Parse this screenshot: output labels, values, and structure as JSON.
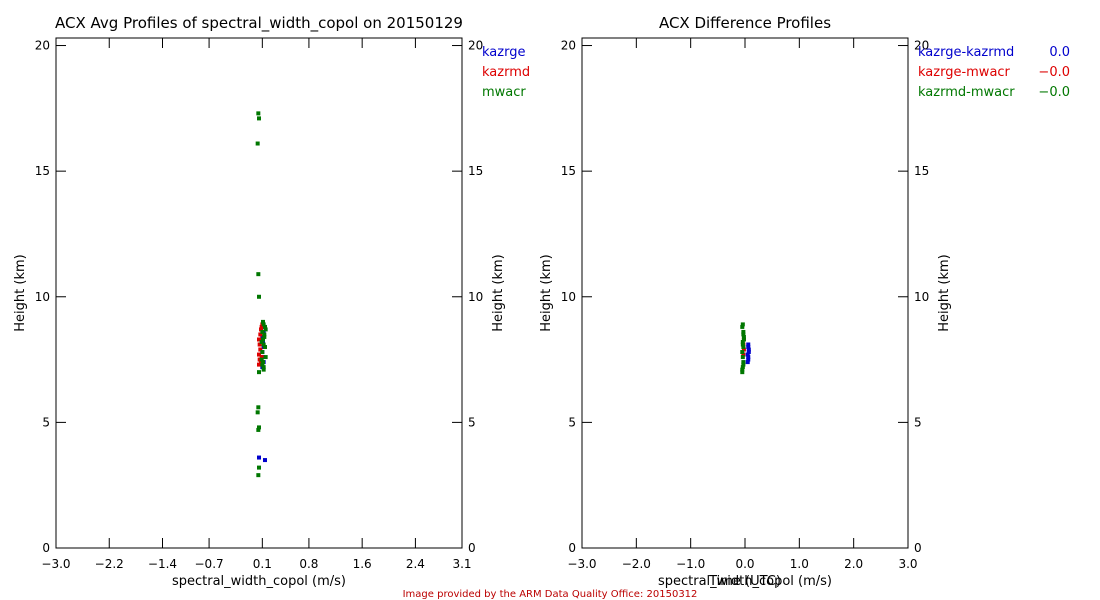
{
  "credit": "Image provided by the ARM Data Quality Office: 20150312",
  "colors": {
    "kazrge": "#0000cc",
    "kazrmd": "#dd0000",
    "mwacr": "#007700",
    "credit": "#bb0000",
    "axis": "#000000"
  },
  "chart_data": [
    {
      "type": "scatter",
      "title": "ACX Avg Profiles of spectral_width_copol on 20150129",
      "xlabel": "spectral_width_copol (m/s)",
      "ylabel": "Height (km)",
      "ylabel_right": "Height (km)",
      "xlim": [
        -3.0,
        3.1
      ],
      "ylim": [
        0,
        20.3
      ],
      "xticks": [
        -3.0,
        -2.2,
        -1.4,
        -0.7,
        0.1,
        0.8,
        1.6,
        2.4,
        3.1
      ],
      "xtick_labels": [
        "−3.0",
        "−2.2",
        "−1.4",
        "−0.7",
        "0.1",
        "0.8",
        "1.6",
        "2.4",
        "3.1"
      ],
      "yticks": [
        0,
        5,
        10,
        15,
        20
      ],
      "ytick_labels": [
        "0",
        "5",
        "10",
        "15",
        "20"
      ],
      "legend_position": "top-right-outside",
      "legend": [
        {
          "label": "kazrge",
          "color": "#0000cc"
        },
        {
          "label": "kazrmd",
          "color": "#dd0000"
        },
        {
          "label": "mwacr",
          "color": "#007700"
        }
      ],
      "series": [
        {
          "name": "kazrge",
          "color": "#0000cc",
          "x": [
            0.1,
            0.12,
            0.11,
            0.1,
            0.12,
            0.11,
            0.1,
            0.12,
            0.14,
            0.05
          ],
          "y": [
            7.2,
            7.4,
            7.6,
            7.8,
            8.0,
            8.2,
            8.4,
            8.6,
            3.5,
            3.6
          ]
        },
        {
          "name": "kazrmd",
          "color": "#dd0000",
          "x": [
            0.05,
            0.06,
            0.05,
            0.07,
            0.06,
            0.05,
            0.07,
            0.08,
            0.09,
            0.1,
            0.09,
            0.08
          ],
          "y": [
            7.3,
            7.5,
            7.7,
            7.9,
            8.1,
            8.3,
            8.5,
            8.7,
            8.8,
            8.9,
            7.6,
            7.4
          ]
        },
        {
          "name": "mwacr",
          "color": "#007700",
          "x": [
            0.04,
            0.05,
            0.04,
            0.05,
            0.03,
            0.04,
            0.05,
            0.04,
            0.03,
            0.05,
            0.04,
            0.05,
            0.12,
            0.15,
            0.14,
            0.13,
            0.15,
            0.14,
            0.12,
            0.11,
            0.1,
            0.09,
            0.1,
            0.11,
            0.12,
            0.13,
            0.1,
            0.09,
            0.11,
            0.12
          ],
          "y": [
            2.9,
            3.2,
            4.7,
            4.8,
            5.4,
            5.6,
            10.0,
            10.9,
            16.1,
            17.1,
            17.3,
            7.0,
            7.2,
            7.6,
            8.0,
            8.4,
            8.7,
            8.8,
            8.9,
            9.0,
            8.6,
            8.2,
            7.8,
            7.4,
            7.1,
            8.5,
            7.3,
            7.5,
            8.3,
            8.1
          ]
        }
      ]
    },
    {
      "type": "scatter",
      "title": "ACX Difference Profiles",
      "xlabel": "spectral_width_copol (m/s)",
      "ylabel": "Height (km)",
      "ylabel_right": "Height (km)",
      "xlim": [
        -3.0,
        3.0
      ],
      "ylim": [
        0,
        20.3
      ],
      "xticks": [
        -3.0,
        -2.0,
        -1.0,
        0.0,
        1.0,
        2.0,
        3.0
      ],
      "xtick_labels": [
        "−3.0",
        "−2.0",
        "−1.0",
        "0.0",
        "1.0",
        "2.0",
        "3.0"
      ],
      "yticks": [
        0,
        5,
        10,
        15,
        20
      ],
      "ytick_labels": [
        "0",
        "5",
        "10",
        "15",
        "20"
      ],
      "overlapping_text": "Time (UTC)",
      "legend_position": "top-right-outside",
      "legend": [
        {
          "label": "kazrge-kazrmd",
          "value": "0.0",
          "color": "#0000cc"
        },
        {
          "label": "kazrge-mwacr",
          "value": "−0.0",
          "color": "#dd0000"
        },
        {
          "label": "kazrmd-mwacr",
          "value": "−0.0",
          "color": "#007700"
        }
      ],
      "series": [
        {
          "name": "kazrge-kazrmd",
          "color": "#0000cc",
          "x": [
            0.05,
            0.06,
            0.07,
            0.06,
            0.05,
            0.06,
            0.07,
            0.06
          ],
          "y": [
            7.4,
            7.6,
            7.8,
            8.0,
            7.7,
            7.5,
            7.9,
            8.1
          ]
        },
        {
          "name": "kazrge-mwacr",
          "color": "#dd0000",
          "x": [
            -0.03,
            -0.02,
            -0.03,
            -0.02
          ],
          "y": [
            7.7,
            7.9,
            8.1,
            8.3
          ]
        },
        {
          "name": "kazrmd-mwacr",
          "color": "#007700",
          "x": [
            -0.05,
            -0.04,
            -0.03,
            -0.04,
            -0.05,
            -0.03,
            -0.04,
            -0.02,
            -0.03,
            -0.05,
            -0.04,
            -0.03,
            -0.02,
            -0.04,
            -0.03,
            -0.05
          ],
          "y": [
            7.0,
            7.2,
            7.4,
            7.6,
            7.8,
            8.0,
            8.2,
            8.4,
            8.6,
            8.8,
            8.9,
            8.5,
            8.3,
            8.1,
            7.3,
            7.1
          ]
        }
      ]
    }
  ]
}
